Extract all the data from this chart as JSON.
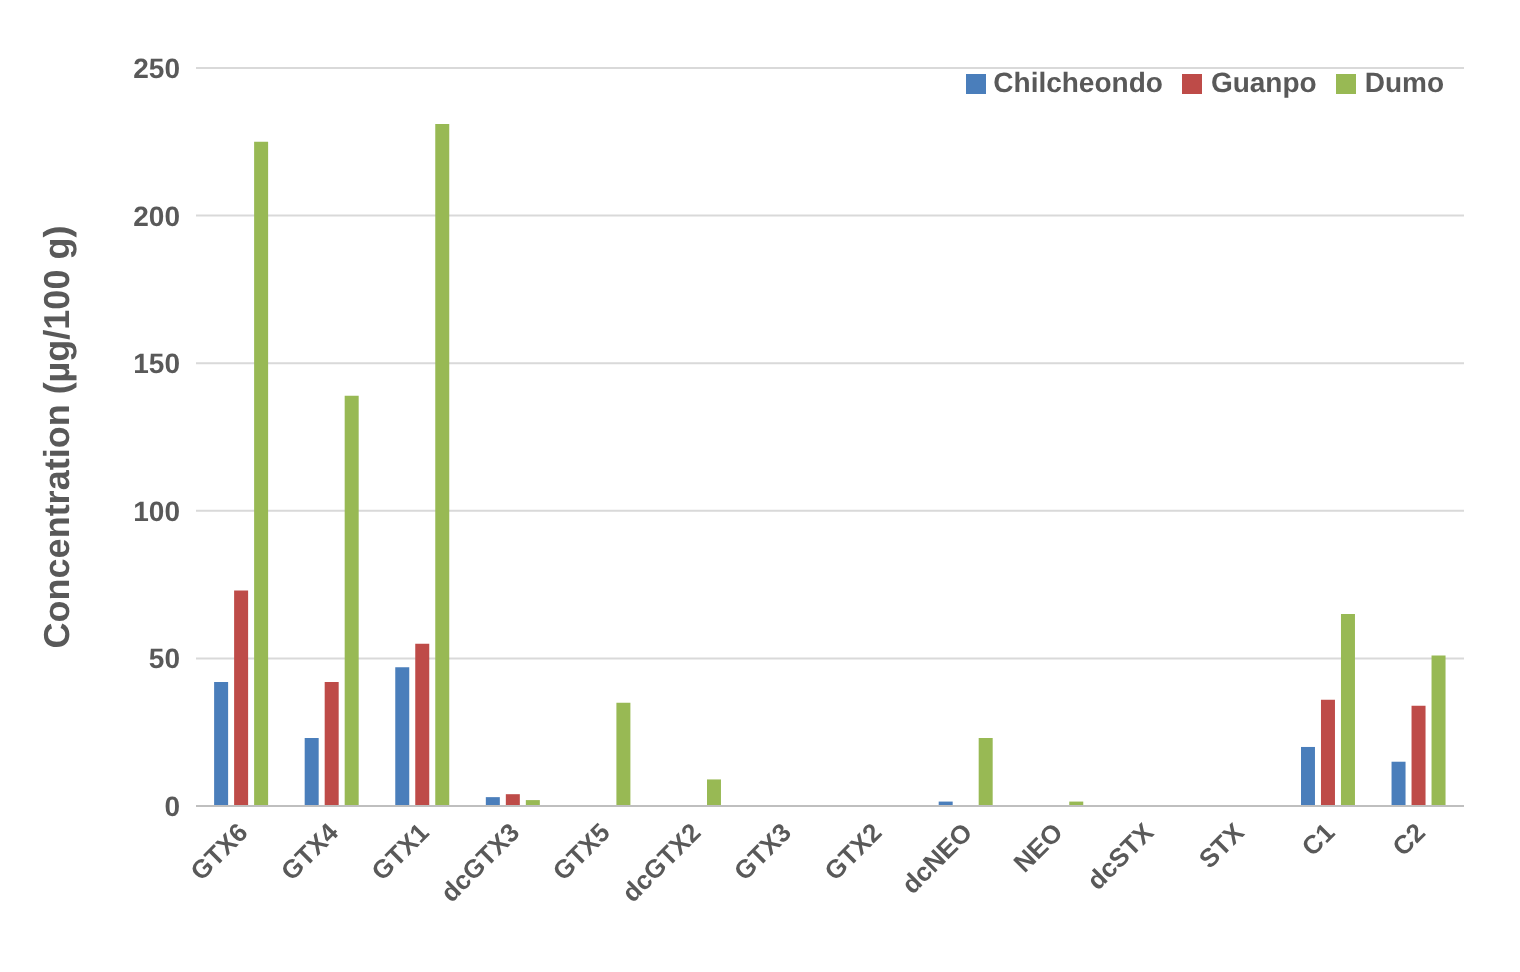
{
  "chart_data": {
    "type": "bar",
    "ylabel": "Concentration (µg/100 g)",
    "categories": [
      "GTX6",
      "GTX4",
      "GTX1",
      "dcGTX3",
      "GTX5",
      "dcGTX2",
      "GTX3",
      "GTX2",
      "dcNEO",
      "NEO",
      "dcSTX",
      "STX",
      "C1",
      "C2"
    ],
    "series": [
      {
        "name": "Chilcheondo",
        "color": "#4a7ebb",
        "values": [
          42,
          23,
          47,
          3,
          0,
          0,
          0,
          0,
          1.5,
          0,
          0,
          0,
          20,
          15
        ]
      },
      {
        "name": "Guanpo",
        "color": "#be4b48",
        "values": [
          73,
          42,
          55,
          4,
          0,
          0,
          0,
          0,
          0,
          0,
          0,
          0,
          36,
          34
        ]
      },
      {
        "name": "Dumo",
        "color": "#98b954",
        "values": [
          225,
          139,
          231,
          2,
          35,
          9,
          0,
          0,
          23,
          1.5,
          0,
          0,
          65,
          51
        ]
      }
    ],
    "ylim": [
      0,
      250
    ],
    "yticks": [
      0,
      50,
      100,
      150,
      200,
      250
    ],
    "grid": "y",
    "legend": "top right"
  }
}
